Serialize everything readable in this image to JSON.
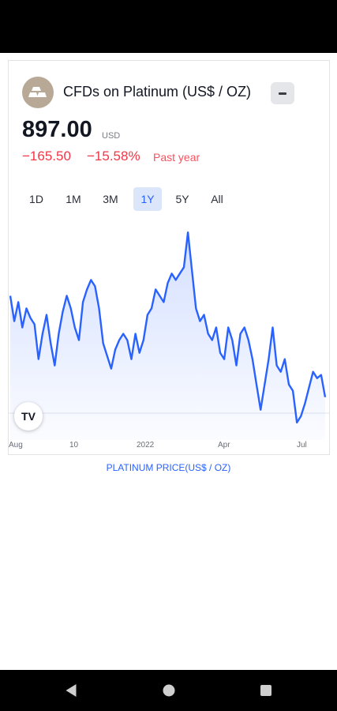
{
  "symbol": {
    "title": "CFDs on Platinum (US$ / OZ)",
    "logo_icon": "gold-bars-icon",
    "price": "897.00",
    "currency": "USD",
    "change_abs": "−165.50",
    "change_pct": "−15.58%",
    "change_period": "Past year"
  },
  "range_tabs": [
    {
      "label": "1D",
      "active": false
    },
    {
      "label": "1M",
      "active": false
    },
    {
      "label": "3M",
      "active": false
    },
    {
      "label": "1Y",
      "active": true
    },
    {
      "label": "5Y",
      "active": false
    },
    {
      "label": "All",
      "active": false
    }
  ],
  "chart_data": {
    "type": "area",
    "title": "",
    "xlabel": "",
    "ylabel": "",
    "x_tick_labels": [
      "Aug",
      "10",
      "2022",
      "Apr",
      "Jul"
    ],
    "series": [
      {
        "values": [
          1060,
          1020,
          1050,
          1010,
          1040,
          1025,
          1015,
          960,
          1000,
          1030,
          985,
          950,
          1000,
          1035,
          1060,
          1040,
          1010,
          990,
          1050,
          1070,
          1085,
          1075,
          1040,
          985,
          965,
          945,
          975,
          990,
          1000,
          990,
          960,
          1000,
          970,
          990,
          1030,
          1040,
          1070,
          1060,
          1050,
          1080,
          1095,
          1085,
          1095,
          1105,
          1160,
          1100,
          1040,
          1020,
          1030,
          1000,
          990,
          1010,
          970,
          960,
          1010,
          990,
          950,
          1000,
          1010,
          990,
          960,
          920,
          880,
          920,
          960,
          1010,
          950,
          940,
          960,
          920,
          910,
          860,
          870,
          890,
          915,
          940,
          930,
          935,
          900
        ]
      }
    ],
    "line_color": "#2962ff",
    "grid": false
  },
  "footer": {
    "link_text": "PLATINUM PRICE(US$ / OZ)"
  },
  "watermark": "TV"
}
